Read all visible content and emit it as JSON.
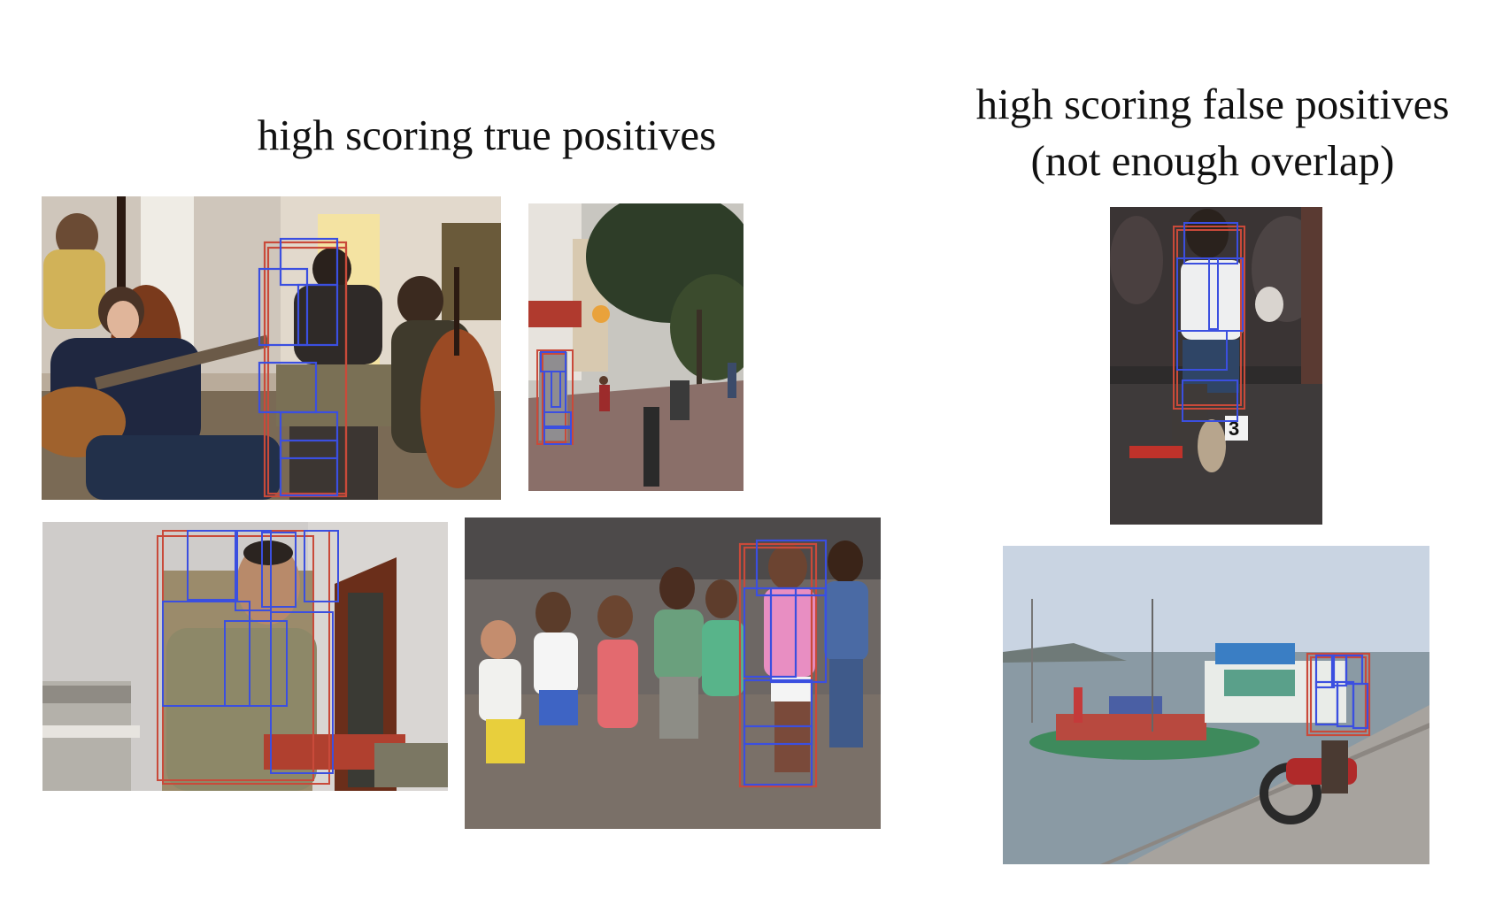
{
  "headings": {
    "true_positives": "high scoring true positives",
    "false_positives_line1": "high scoring false positives",
    "false_positives_line2": "(not enough overlap)"
  },
  "colors": {
    "root_box": "#c94a3a",
    "part_box": "#3b4fe0",
    "background": "#ffffff",
    "text": "#111111"
  },
  "panels": [
    {
      "id": "musicians",
      "group": "true_positives",
      "scene": "indoor jazz band with guitar, cello and bass players"
    },
    {
      "id": "street",
      "group": "true_positives",
      "scene": "pedestrian street with trees and shops"
    },
    {
      "id": "soldier",
      "group": "true_positives",
      "scene": "man in uniform sitting at a desk"
    },
    {
      "id": "children",
      "group": "true_positives",
      "scene": "group of children standing on rocky ground"
    },
    {
      "id": "dogshow",
      "group": "false_positives",
      "scene": "person at dog show with numbered card"
    },
    {
      "id": "boats",
      "group": "false_positives",
      "scene": "boats on water with motorbike on pier"
    }
  ]
}
